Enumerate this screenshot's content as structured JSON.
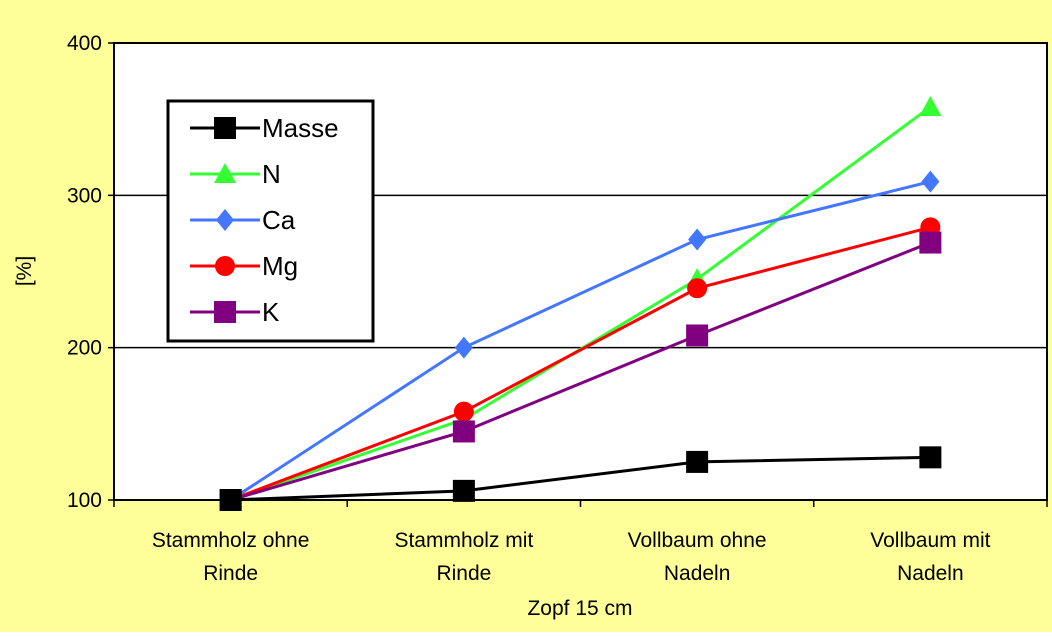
{
  "chart_data": {
    "type": "line",
    "title": "",
    "xlabel": "Zopf 15 cm",
    "ylabel": "[%]",
    "ylim": [
      100,
      400
    ],
    "yticks": [
      "100",
      "200",
      "300",
      "400"
    ],
    "categories": [
      [
        "Stammholz ohne",
        "Rinde"
      ],
      [
        "Stammholz mit",
        "Rinde"
      ],
      [
        "Vollbaum ohne",
        "Nadeln"
      ],
      [
        "Vollbaum mit",
        "Nadeln"
      ]
    ],
    "grid": true,
    "legend_position": "top-left",
    "series": [
      {
        "name": "Masse",
        "color": "#000000",
        "marker": "square",
        "values": [
          100,
          106,
          125,
          128
        ]
      },
      {
        "name": "N",
        "color": "#33ff33",
        "marker": "triangle",
        "values": [
          100,
          153,
          245,
          358
        ]
      },
      {
        "name": "Ca",
        "color": "#4477ff",
        "marker": "diamond",
        "values": [
          100,
          200,
          271,
          309
        ]
      },
      {
        "name": "Mg",
        "color": "#ff0000",
        "marker": "circle",
        "values": [
          100,
          158,
          239,
          279
        ]
      },
      {
        "name": "K",
        "color": "#800080",
        "marker": "square",
        "values": [
          100,
          145,
          208,
          269
        ]
      }
    ],
    "colors": {
      "background": "#ffff99",
      "plot_area": "#ffffff"
    }
  }
}
